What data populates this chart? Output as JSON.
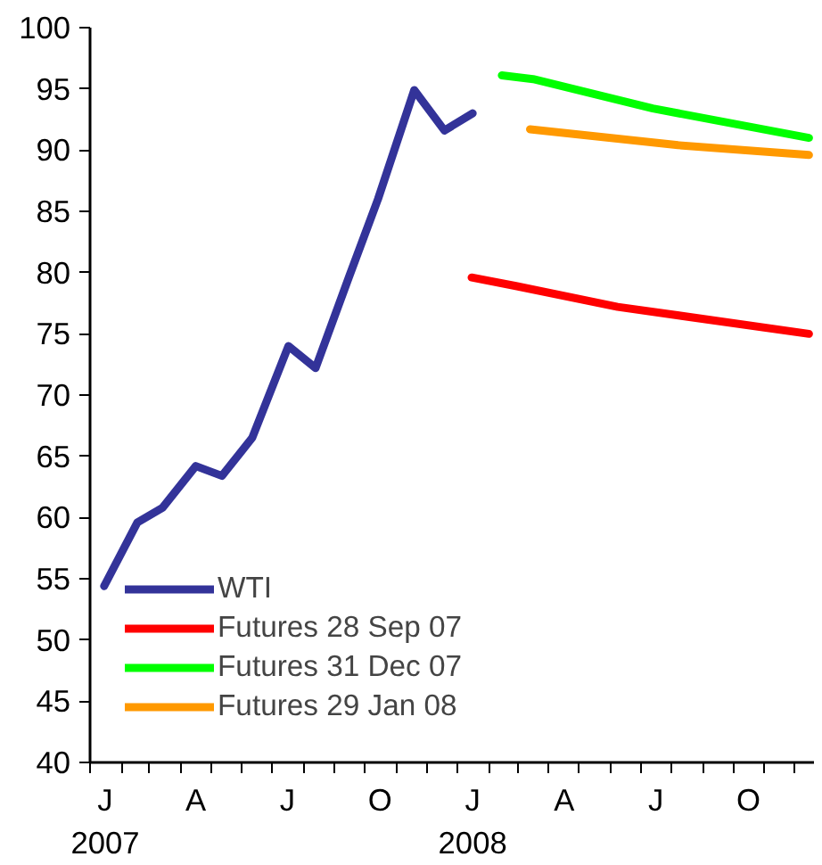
{
  "chart_data": {
    "type": "line",
    "xlim": [
      "2007-01-01",
      "2008-12-20"
    ],
    "xticks": [
      {
        "value": "2007-01-16",
        "label": "J\n2007"
      },
      {
        "value": "2007-04-16",
        "label": "A"
      },
      {
        "value": "2007-07-16",
        "label": "J"
      },
      {
        "value": "2007-10-16",
        "label": "O"
      },
      {
        "value": "2008-01-16",
        "label": "J\n2008"
      },
      {
        "value": "2008-04-16",
        "label": "A"
      },
      {
        "value": "2008-07-16",
        "label": "J"
      },
      {
        "value": "2008-10-16",
        "label": "O"
      },
      {
        "value": "2007-01-01",
        "label": null
      },
      {
        "value": "2007-02-01",
        "label": null
      },
      {
        "value": "2007-03-01",
        "label": null
      },
      {
        "value": "2007-04-01",
        "label": null
      },
      {
        "value": "2007-05-01",
        "label": null
      },
      {
        "value": "2007-06-01",
        "label": null
      },
      {
        "value": "2007-07-01",
        "label": null
      },
      {
        "value": "2007-08-01",
        "label": null
      },
      {
        "value": "2007-09-01",
        "label": null
      },
      {
        "value": "2007-10-01",
        "label": null
      },
      {
        "value": "2007-11-01",
        "label": null
      },
      {
        "value": "2007-12-01",
        "label": null
      },
      {
        "value": "2008-01-01",
        "label": null
      },
      {
        "value": "2008-02-01",
        "label": null
      },
      {
        "value": "2008-03-01",
        "label": null
      },
      {
        "value": "2008-04-01",
        "label": null
      },
      {
        "value": "2008-05-01",
        "label": null
      },
      {
        "value": "2008-06-01",
        "label": null
      },
      {
        "value": "2008-07-01",
        "label": null
      },
      {
        "value": "2008-08-01",
        "label": null
      },
      {
        "value": "2008-09-01",
        "label": null
      },
      {
        "value": "2008-10-01",
        "label": null
      },
      {
        "value": "2008-11-01",
        "label": null
      },
      {
        "value": "2008-12-01",
        "label": null
      }
    ],
    "ylim": [
      40,
      100
    ],
    "yticks": [
      40,
      45,
      50,
      55,
      60,
      65,
      70,
      75,
      80,
      85,
      90,
      95,
      100
    ],
    "grid": false,
    "legend": "bottom left",
    "marker": "none",
    "line_style": "solid",
    "series": [
      {
        "name": "WTI",
        "color": "#333399",
        "x": [
          "2007-01-15",
          "2007-02-17",
          "2007-03-14",
          "2007-04-16",
          "2007-05-12",
          "2007-06-11",
          "2007-07-17",
          "2007-08-13",
          "2007-09-15",
          "2007-10-14",
          "2007-11-19",
          "2007-12-19",
          "2008-01-16"
        ],
        "values": [
          54.4,
          59.6,
          60.8,
          64.2,
          63.4,
          66.5,
          74.0,
          72.2,
          79.6,
          86.0,
          94.9,
          91.6,
          93.0
        ]
      },
      {
        "name": "Futures 28 Sep 07",
        "color": "#ff0000",
        "x": [
          "2008-01-15",
          "2008-02-28",
          "2008-06-08",
          "2008-12-15"
        ],
        "values": [
          79.6,
          78.9,
          77.2,
          75.0
        ]
      },
      {
        "name": "Futures 31 Dec 07",
        "color": "#00ff00",
        "x": [
          "2008-02-14",
          "2008-03-16",
          "2008-07-13",
          "2008-12-15"
        ],
        "values": [
          96.1,
          95.8,
          93.4,
          91.0
        ]
      },
      {
        "name": "Futures 29 Jan 08",
        "color": "#ff9900",
        "x": [
          "2008-03-13",
          "2008-08-07",
          "2008-12-15"
        ],
        "values": [
          91.7,
          90.4,
          89.6
        ]
      }
    ]
  }
}
